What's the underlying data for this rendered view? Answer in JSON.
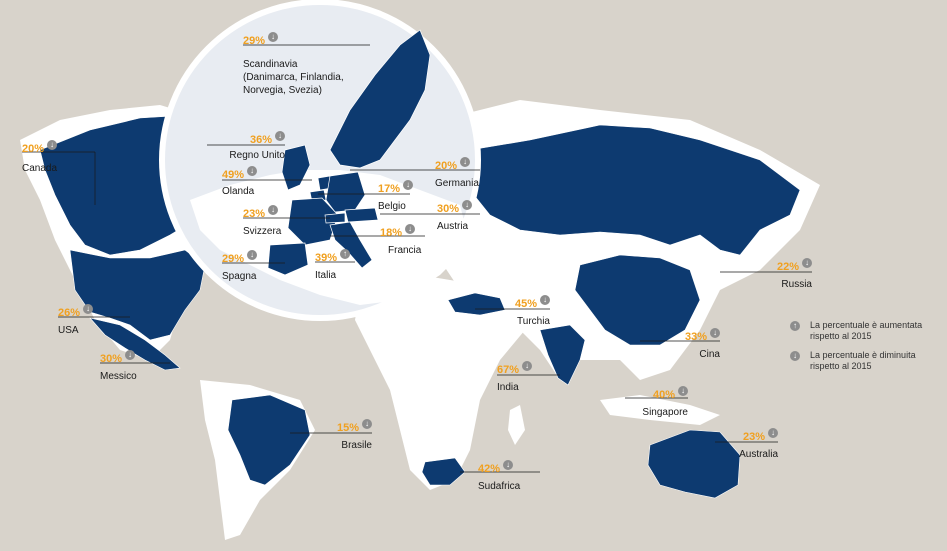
{
  "colors": {
    "ocean": "#d8d3cb",
    "land": "#ffffff",
    "highlight": "#0d3a70",
    "percent": "#f0a020",
    "arrow": "#8d8d8d"
  },
  "icons": {
    "up": "arrow-up-circle-icon",
    "down": "arrow-down-circle-icon"
  },
  "labels": [
    {
      "id": "scandinavia",
      "percent": "29%",
      "trend": "down",
      "name": "Scandinavia\n(Danimarca, Finlandia,\nNorvegia, Svezia)"
    },
    {
      "id": "canada",
      "percent": "20%",
      "trend": "down",
      "name": "Canada"
    },
    {
      "id": "uk",
      "percent": "36%",
      "trend": "down",
      "name": "Regno Unito"
    },
    {
      "id": "netherlands",
      "percent": "49%",
      "trend": "down",
      "name": "Olanda"
    },
    {
      "id": "germany",
      "percent": "20%",
      "trend": "down",
      "name": "Germania"
    },
    {
      "id": "belgium",
      "percent": "17%",
      "trend": "down",
      "name": "Belgio"
    },
    {
      "id": "switzerland",
      "percent": "23%",
      "trend": "down",
      "name": "Svizzera"
    },
    {
      "id": "austria",
      "percent": "30%",
      "trend": "down",
      "name": "Austria"
    },
    {
      "id": "france",
      "percent": "18%",
      "trend": "down",
      "name": "Francia"
    },
    {
      "id": "spain",
      "percent": "29%",
      "trend": "down",
      "name": "Spagna"
    },
    {
      "id": "italy",
      "percent": "39%",
      "trend": "up",
      "name": "Italia"
    },
    {
      "id": "russia",
      "percent": "22%",
      "trend": "down",
      "name": "Russia"
    },
    {
      "id": "usa",
      "percent": "26%",
      "trend": "down",
      "name": "USA"
    },
    {
      "id": "turkey",
      "percent": "45%",
      "trend": "down",
      "name": "Turchia"
    },
    {
      "id": "china",
      "percent": "33%",
      "trend": "down",
      "name": "Cina"
    },
    {
      "id": "mexico",
      "percent": "30%",
      "trend": "down",
      "name": "Messico"
    },
    {
      "id": "india",
      "percent": "67%",
      "trend": "down",
      "name": "India"
    },
    {
      "id": "singapore",
      "percent": "40%",
      "trend": "down",
      "name": "Singapore"
    },
    {
      "id": "brazil",
      "percent": "15%",
      "trend": "down",
      "name": "Brasile"
    },
    {
      "id": "australia",
      "percent": "23%",
      "trend": "down",
      "name": "Australia"
    },
    {
      "id": "south-africa",
      "percent": "42%",
      "trend": "down",
      "name": "Sudafrica"
    }
  ],
  "legend": {
    "up_text": "La percentuale è aumentata\nrispetto al 2015",
    "down_text": "La percentuale è diminuita\nrispetto al 2015"
  }
}
